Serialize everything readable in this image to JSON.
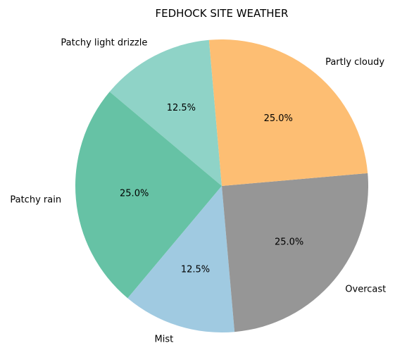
{
  "chart_data": {
    "type": "pie",
    "title": "FEDHOCK SITE WEATHER",
    "start_angle_deg": 95,
    "direction": "counterclockwise",
    "slices": [
      {
        "label": "Patchy light drizzle",
        "value": 12.5,
        "pct_label": "12.5%",
        "color": "#8fd3c7"
      },
      {
        "label": "Patchy rain",
        "value": 25.0,
        "pct_label": "25.0%",
        "color": "#66c2a5"
      },
      {
        "label": "Mist",
        "value": 12.5,
        "pct_label": "12.5%",
        "color": "#a0cae1"
      },
      {
        "label": "Overcast",
        "value": 25.0,
        "pct_label": "25.0%",
        "color": "#969696"
      },
      {
        "label": "Partly cloudy",
        "value": 25.0,
        "pct_label": "25.0%",
        "color": "#fdbe73"
      }
    ]
  }
}
